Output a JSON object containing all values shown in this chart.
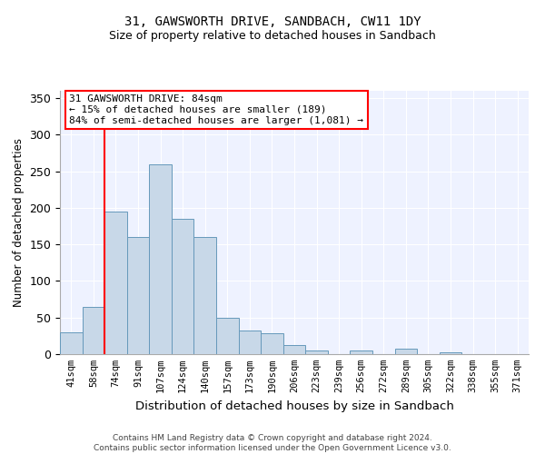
{
  "title": "31, GAWSWORTH DRIVE, SANDBACH, CW11 1DY",
  "subtitle": "Size of property relative to detached houses in Sandbach",
  "xlabel": "Distribution of detached houses by size in Sandbach",
  "ylabel": "Number of detached properties",
  "footnote": "Contains HM Land Registry data © Crown copyright and database right 2024.\nContains public sector information licensed under the Open Government Licence v3.0.",
  "bin_labels": [
    "41sqm",
    "58sqm",
    "74sqm",
    "91sqm",
    "107sqm",
    "124sqm",
    "140sqm",
    "157sqm",
    "173sqm",
    "190sqm",
    "206sqm",
    "223sqm",
    "239sqm",
    "256sqm",
    "272sqm",
    "289sqm",
    "305sqm",
    "322sqm",
    "338sqm",
    "355sqm",
    "371sqm"
  ],
  "bar_heights": [
    30,
    65,
    195,
    160,
    260,
    185,
    160,
    50,
    32,
    28,
    13,
    5,
    0,
    5,
    0,
    7,
    0,
    3,
    0,
    0,
    0
  ],
  "bar_color": "#c8d8e8",
  "bar_edge_color": "#6699bb",
  "vline_x": 1.5,
  "vline_color": "red",
  "annotation_text": "31 GAWSWORTH DRIVE: 84sqm\n← 15% of detached houses are smaller (189)\n84% of semi-detached houses are larger (1,081) →",
  "annotation_box_color": "white",
  "annotation_box_edge": "red",
  "ylim": [
    0,
    360
  ],
  "yticks": [
    0,
    50,
    100,
    150,
    200,
    250,
    300,
    350
  ],
  "background_color": "#eef2ff",
  "title_fontsize": 10,
  "subtitle_fontsize": 9
}
